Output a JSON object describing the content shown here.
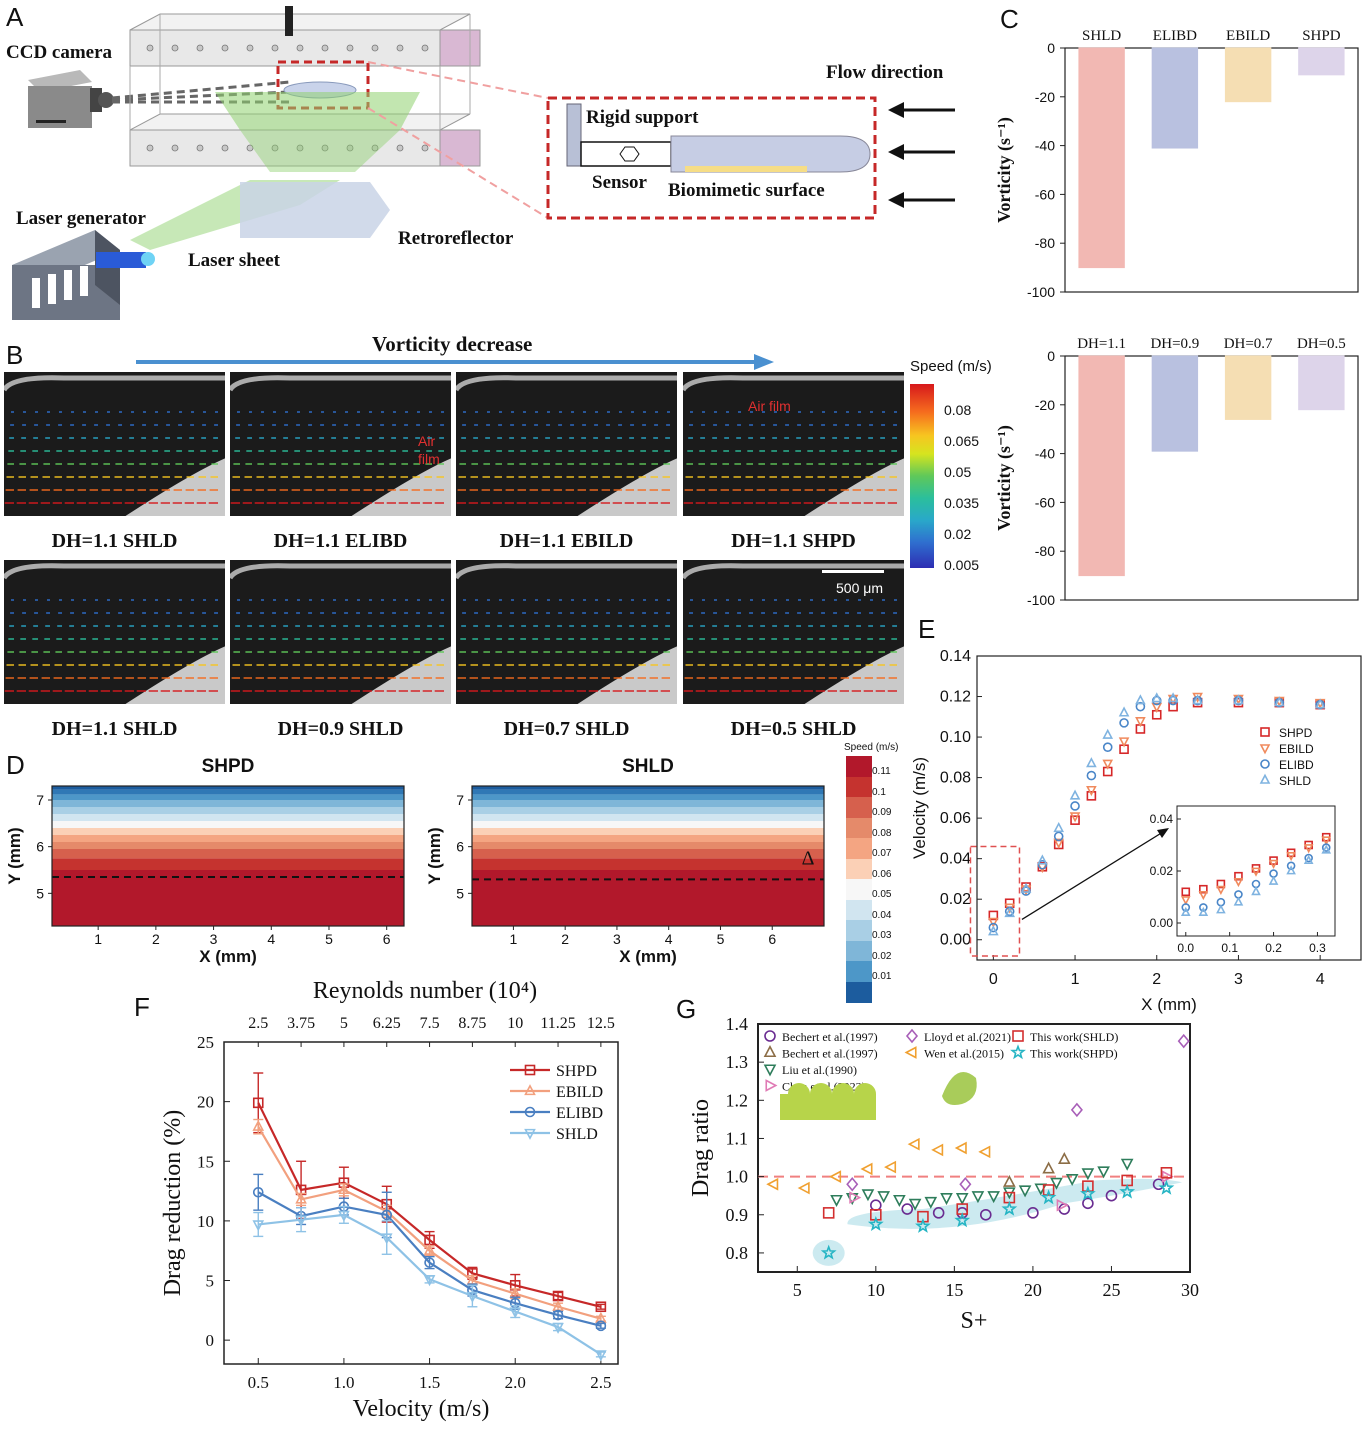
{
  "panel_letters": {
    "a": "A",
    "b": "B",
    "c": "C",
    "d": "D",
    "e": "E",
    "f": "F",
    "g": "G"
  },
  "panel_a": {
    "ccd_camera": "CCD camera",
    "laser_generator": "Laser generator",
    "laser_sheet": "Laser sheet",
    "retroreflector": "Retroreflector",
    "flow_direction": "Flow direction",
    "rigid_support": "Rigid support",
    "sensor": "Sensor",
    "biomimetic_surface": "Biomimetic surface"
  },
  "panel_b": {
    "arrow_label": "Vorticity decrease",
    "colorbar_title": "Speed (m/s)",
    "colorbar_ticks": [
      "0.08",
      "0.065",
      "0.05",
      "0.035",
      "0.02",
      "0.005"
    ],
    "scale_bar": "500 μm",
    "row1": [
      "DH=1.1 SHLD",
      "DH=1.1 ELIBD",
      "DH=1.1 EBILD",
      "DH=1.1 SHPD"
    ],
    "row2": [
      "DH=1.1 SHLD",
      "DH=0.9 SHLD",
      "DH=0.7 SHLD",
      "DH=0.5 SHLD"
    ],
    "air_film_1": "Air film",
    "air_film_2": "Air film"
  },
  "panel_d": {
    "colorbar_title": "Speed (m/s)",
    "colorbar_ticks": [
      "0.11",
      "0.1",
      "0.09",
      "0.08",
      "0.07",
      "0.06",
      "0.05",
      "0.04",
      "0.03",
      "0.02",
      "0.01"
    ],
    "delta_symbol": "Δ"
  },
  "chart_data": [
    {
      "id": "C_top",
      "type": "bar",
      "categories": [
        "SHLD",
        "ELIBD",
        "EBILD",
        "SHPD"
      ],
      "values": [
        -90,
        -41,
        -22,
        -11
      ],
      "colors": [
        "#f2b8b3",
        "#b9c1e0",
        "#f5deb3",
        "#ddd4ea"
      ],
      "ylabel": "Vorticity (s⁻¹)",
      "ylim": [
        -100,
        0
      ],
      "yticks": [
        "0",
        "-20",
        "-40",
        "-60",
        "-80",
        "-100"
      ]
    },
    {
      "id": "C_bottom",
      "type": "bar",
      "categories": [
        "DH=1.1",
        "DH=0.9",
        "DH=0.7",
        "DH=0.5"
      ],
      "values": [
        -90,
        -39,
        -26,
        -22
      ],
      "colors": [
        "#f2b8b3",
        "#b9c1e0",
        "#f5deb3",
        "#ddd4ea"
      ],
      "ylabel": "Vorticity (s⁻¹)",
      "ylim": [
        -100,
        0
      ],
      "yticks": [
        "0",
        "-20",
        "-40",
        "-60",
        "-80",
        "-100"
      ]
    },
    {
      "id": "D_left",
      "type": "heatmap",
      "title": "SHPD",
      "xlabel": "X (mm)",
      "ylabel": "Y (mm)",
      "xlim": [
        0.2,
        6.3
      ],
      "ylim": [
        4.3,
        7.3
      ],
      "xticks": [
        "1",
        "2",
        "3",
        "4",
        "5",
        "6"
      ],
      "yticks": [
        "5",
        "6",
        "7"
      ],
      "dashed_line_y": 5.35
    },
    {
      "id": "D_right",
      "type": "heatmap",
      "title": "SHLD",
      "xlabel": "X (mm)",
      "ylabel": "Y (mm)",
      "xlim": [
        0.2,
        7.0
      ],
      "ylim": [
        4.3,
        7.3
      ],
      "xticks": [
        "1",
        "2",
        "3",
        "4",
        "5",
        "6"
      ],
      "yticks": [
        "5",
        "6",
        "7"
      ],
      "dashed_line_y": 5.3
    },
    {
      "id": "E",
      "type": "scatter",
      "xlabel": "X (mm)",
      "ylabel": "Velocity (m/s)",
      "xlim": [
        -0.2,
        4.5
      ],
      "ylim": [
        -0.01,
        0.14
      ],
      "xticks": [
        "0",
        "1",
        "2",
        "3",
        "4"
      ],
      "yticks": [
        "0.00",
        "0.02",
        "0.04",
        "0.06",
        "0.08",
        "0.10",
        "0.12",
        "0.14"
      ],
      "series": [
        {
          "name": "SHPD",
          "color": "#d62728",
          "marker": "square",
          "x": [
            0,
            0.2,
            0.4,
            0.6,
            0.8,
            1.0,
            1.2,
            1.4,
            1.6,
            1.8,
            2.0,
            2.2,
            2.5,
            3.0,
            3.5,
            4.0
          ],
          "y": [
            0.012,
            0.018,
            0.026,
            0.036,
            0.047,
            0.059,
            0.071,
            0.083,
            0.094,
            0.104,
            0.111,
            0.115,
            0.117,
            0.117,
            0.117,
            0.116
          ]
        },
        {
          "name": "EBILD",
          "color": "#f08a5d",
          "marker": "triangle-down",
          "x": [
            0,
            0.2,
            0.4,
            0.6,
            0.8,
            1.0,
            1.2,
            1.4,
            1.6,
            1.8,
            2.0,
            2.2,
            2.5,
            3.0,
            3.5,
            4.0
          ],
          "y": [
            0.009,
            0.016,
            0.025,
            0.036,
            0.048,
            0.061,
            0.074,
            0.087,
            0.098,
            0.108,
            0.115,
            0.119,
            0.12,
            0.119,
            0.118,
            0.117
          ]
        },
        {
          "name": "ELIBD",
          "color": "#4a86c8",
          "marker": "circle",
          "x": [
            0,
            0.2,
            0.4,
            0.6,
            0.8,
            1.0,
            1.2,
            1.4,
            1.6,
            1.8,
            2.0,
            2.2,
            2.5,
            3.0,
            3.5,
            4.0
          ],
          "y": [
            0.006,
            0.014,
            0.024,
            0.037,
            0.051,
            0.066,
            0.081,
            0.095,
            0.107,
            0.115,
            0.118,
            0.118,
            0.118,
            0.118,
            0.117,
            0.116
          ]
        },
        {
          "name": "SHLD",
          "color": "#7fb3e0",
          "marker": "triangle-up",
          "x": [
            0,
            0.2,
            0.4,
            0.6,
            0.8,
            1.0,
            1.2,
            1.4,
            1.6,
            1.8,
            2.0,
            2.2,
            2.5,
            3.0,
            3.5,
            4.0
          ],
          "y": [
            0.004,
            0.013,
            0.025,
            0.039,
            0.055,
            0.071,
            0.087,
            0.101,
            0.112,
            0.118,
            0.119,
            0.119,
            0.118,
            0.118,
            0.117,
            0.116
          ]
        }
      ],
      "inset": {
        "xlim": [
          -0.02,
          0.34
        ],
        "ylim": [
          -0.005,
          0.045
        ],
        "xticks": [
          "0.0",
          "0.1",
          "0.2",
          "0.3"
        ],
        "yticks": [
          "0.00",
          "0.02",
          "0.04"
        ],
        "x": [
          0.0,
          0.04,
          0.08,
          0.12,
          0.16,
          0.2,
          0.24,
          0.28,
          0.32
        ],
        "SHPD": [
          0.012,
          0.013,
          0.015,
          0.018,
          0.021,
          0.024,
          0.027,
          0.03,
          0.033
        ],
        "EBILD": [
          0.009,
          0.011,
          0.013,
          0.016,
          0.02,
          0.023,
          0.026,
          0.029,
          0.032
        ],
        "ELIBD": [
          0.006,
          0.006,
          0.008,
          0.011,
          0.015,
          0.019,
          0.022,
          0.025,
          0.029
        ],
        "SHLD": [
          0.004,
          0.004,
          0.005,
          0.008,
          0.012,
          0.016,
          0.02,
          0.024,
          0.028
        ]
      }
    },
    {
      "id": "F",
      "type": "line",
      "xlabel": "Velocity (m/s)",
      "ylabel": "Drag reduction (%)",
      "top_xlabel": "Reynolds number (10⁴)",
      "top_ticks": [
        "2.5",
        "3.75",
        "5",
        "6.25",
        "7.5",
        "8.75",
        "10",
        "11.25",
        "12.5"
      ],
      "x": [
        0.5,
        0.75,
        1.0,
        1.25,
        1.5,
        1.75,
        2.0,
        2.25,
        2.5
      ],
      "xticks": [
        "0.5",
        "1.0",
        "1.5",
        "2.0",
        "2.5"
      ],
      "yticks": [
        "0",
        "5",
        "10",
        "15",
        "20",
        "25"
      ],
      "xlim": [
        0.3,
        2.6
      ],
      "ylim": [
        -2,
        25
      ],
      "series": [
        {
          "name": "SHPD",
          "color": "#c62828",
          "marker": "square",
          "values": [
            19.9,
            12.6,
            13.2,
            11.4,
            8.4,
            5.6,
            4.6,
            3.7,
            2.8
          ],
          "err": [
            2.5,
            2.4,
            1.3,
            1.5,
            0.7,
            0.5,
            0.9,
            0.3,
            0.2
          ]
        },
        {
          "name": "EBILD",
          "color": "#f2a07e",
          "marker": "triangle-up",
          "values": [
            17.9,
            11.8,
            12.6,
            10.8,
            7.5,
            5.0,
            3.9,
            2.8,
            1.8
          ],
          "err": [
            0.6,
            0.5,
            0.5,
            0.5,
            0.4,
            0.4,
            0.4,
            0.3,
            0.2
          ]
        },
        {
          "name": "ELIBD",
          "color": "#4a7fc1",
          "marker": "circle",
          "values": [
            12.4,
            10.4,
            11.2,
            10.5,
            6.5,
            4.2,
            3.1,
            2.1,
            1.2
          ],
          "err": [
            1.5,
            0.7,
            0.7,
            1.9,
            0.5,
            0.5,
            0.5,
            0.3,
            0.2
          ]
        },
        {
          "name": "SHLD",
          "color": "#8ec2e6",
          "marker": "triangle-down",
          "values": [
            9.7,
            10.1,
            10.5,
            8.6,
            5.1,
            3.7,
            2.4,
            1.1,
            -1.2
          ],
          "err": [
            1.0,
            1.0,
            0.7,
            1.4,
            0.3,
            0.9,
            0.5,
            0.3,
            0.2
          ]
        }
      ]
    },
    {
      "id": "G",
      "type": "scatter",
      "xlabel": "S+",
      "ylabel": "Drag ratio",
      "xlim": [
        2.5,
        30
      ],
      "ylim": [
        0.75,
        1.4
      ],
      "xticks": [
        "5",
        "10",
        "15",
        "20",
        "25",
        "30"
      ],
      "yticks": [
        "0.8",
        "0.9",
        "1.0",
        "1.1",
        "1.2",
        "1.3",
        "1.4"
      ],
      "series": [
        {
          "name": "Bechert et al.(1997)",
          "color": "#6a2c91",
          "marker": "circle",
          "x": [
            10,
            12,
            14,
            15.5,
            17,
            20,
            22,
            23.5,
            25,
            28
          ],
          "y": [
            0.925,
            0.915,
            0.905,
            0.905,
            0.9,
            0.905,
            0.915,
            0.93,
            0.95,
            0.98
          ]
        },
        {
          "name": "Bechert et al.(1997)",
          "color": "#8c6d46",
          "marker": "triangle-up",
          "x": [
            18.5,
            21,
            22
          ],
          "y": [
            0.985,
            1.02,
            1.045
          ]
        },
        {
          "name": "Liu et al.(1990)",
          "color": "#2e7d5b",
          "marker": "triangle-down",
          "x": [
            7.5,
            8.5,
            9.5,
            10.5,
            11.5,
            12.5,
            13.5,
            14.5,
            15.5,
            16.5,
            17.5,
            18.5,
            19.5,
            20.5,
            21.5,
            22.5,
            23.5,
            24.5,
            26
          ],
          "y": [
            0.94,
            0.945,
            0.955,
            0.95,
            0.94,
            0.93,
            0.935,
            0.945,
            0.945,
            0.95,
            0.95,
            0.96,
            0.965,
            0.97,
            0.985,
            0.995,
            1.01,
            1.015,
            1.035
          ]
        },
        {
          "name": "Chen et al.(2023)",
          "color": "#e07bb5",
          "marker": "triangle-right",
          "x": [
            8.6,
            21.8,
            28.5
          ],
          "y": [
            0.945,
            0.925,
            1.0
          ]
        },
        {
          "name": "Lloyd et al.(2021)",
          "color": "#a85fb8",
          "marker": "diamond",
          "x": [
            8.5,
            15.7,
            22.8,
            29.6
          ],
          "y": [
            0.98,
            0.98,
            1.175,
            1.355
          ]
        },
        {
          "name": "Wen et al.(2015)",
          "color": "#f0a030",
          "marker": "triangle-left",
          "x": [
            3.5,
            5.5,
            7.5,
            9.5,
            11,
            12.5,
            14,
            15.5,
            17
          ],
          "y": [
            0.98,
            0.97,
            1.0,
            1.02,
            1.025,
            1.085,
            1.07,
            1.075,
            1.065
          ]
        },
        {
          "name": "This work(SHLD)",
          "color": "#d32f2f",
          "marker": "square",
          "x": [
            7,
            10,
            13,
            15.5,
            18.5,
            21,
            23.5,
            26,
            28.5
          ],
          "y": [
            0.905,
            0.9,
            0.895,
            0.915,
            0.945,
            0.965,
            0.975,
            0.99,
            1.01
          ]
        },
        {
          "name": "This work(SHPD)",
          "color": "#26b5c4",
          "marker": "star",
          "x": [
            7,
            10,
            13,
            15.5,
            18.5,
            21,
            23.5,
            26,
            28.5
          ],
          "y": [
            0.8,
            0.875,
            0.87,
            0.885,
            0.915,
            0.945,
            0.955,
            0.96,
            0.97
          ]
        }
      ],
      "reference_line_y": 1.0
    }
  ]
}
